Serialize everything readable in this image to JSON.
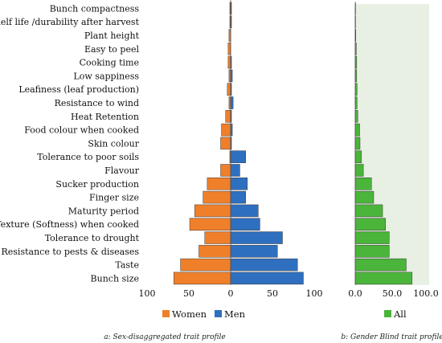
{
  "chart_data": [
    {
      "type": "bar",
      "orientation": "horizontal",
      "subtype": "diverging",
      "caption": "a: Sex-disaggregated trait profile",
      "categories": [
        "Bunch compactness",
        "Shelf life /durability after harvest",
        "Plant height",
        "Easy to peel",
        "Cooking time",
        "Low sappiness",
        "Leafiness (leaf production)",
        "Resistance to wind",
        "Heat Retention",
        "Food colour when cooked",
        "Skin colour",
        "Tolerance to poor soils",
        "Flavour",
        "Sucker production",
        "Finger size",
        "Maturity period",
        "Texture (Softness) when cooked",
        "Tolerance to drought",
        "Resistance to pests & diseases",
        "Taste",
        "Bunch size"
      ],
      "series": [
        {
          "name": "Women",
          "color": "#f07f2a",
          "side": "left",
          "values": [
            1,
            1,
            2,
            3,
            3,
            2,
            4,
            2,
            6,
            11,
            12,
            1,
            12,
            28,
            33,
            43,
            49,
            31,
            38,
            60,
            68
          ]
        },
        {
          "name": "Men",
          "color": "#2f6fbf",
          "side": "right",
          "values": [
            1,
            1,
            0,
            0,
            1,
            2,
            1,
            3,
            1,
            2,
            1,
            18,
            11,
            20,
            18,
            33,
            35,
            62,
            56,
            80,
            87
          ]
        }
      ],
      "xlim": [
        -100,
        100
      ],
      "xticks": [
        "100",
        "50",
        "0",
        "50",
        "100"
      ],
      "legend": "bottom"
    },
    {
      "type": "bar",
      "orientation": "horizontal",
      "caption": "b: Gender Blind trait profile",
      "categories": [
        "Bunch compactness",
        "Shelf life /durability after harvest",
        "Plant height",
        "Easy to peel",
        "Cooking time",
        "Low sappiness",
        "Leafiness (leaf production)",
        "Resistance to wind",
        "Heat Retention",
        "Food colour when cooked",
        "Skin colour",
        "Tolerance to poor soils",
        "Flavour",
        "Sucker production",
        "Finger size",
        "Maturity period",
        "Texture (Softness) when cooked",
        "Tolerance to drought",
        "Resistance to pests & diseases",
        "Taste",
        "Bunch size"
      ],
      "series": [
        {
          "name": "All",
          "color": "#4ab53a",
          "values": [
            0.5,
            0.5,
            0.8,
            1.5,
            2,
            2,
            2.5,
            2.5,
            3.5,
            6,
            6.5,
            8.5,
            11,
            22,
            25,
            37,
            41,
            46,
            46,
            69,
            77
          ]
        }
      ],
      "xlim": [
        0,
        100
      ],
      "xticks": [
        "0.0",
        "50.0",
        "100.0"
      ],
      "background": "#e7f0e2",
      "legend": "bottom"
    }
  ]
}
